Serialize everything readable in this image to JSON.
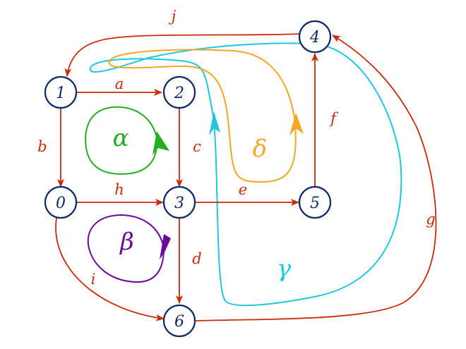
{
  "colors": {
    "edge": "#cc2a0a",
    "node": "#0d2a66",
    "alpha": "#22b022",
    "beta": "#6a0a9a",
    "gamma": "#1ec8e0",
    "delta": "#f5a623"
  },
  "nodes": [
    {
      "id": "n1",
      "label": "1"
    },
    {
      "id": "n2",
      "label": "2"
    },
    {
      "id": "n0",
      "label": "0"
    },
    {
      "id": "n3",
      "label": "3"
    },
    {
      "id": "n4",
      "label": "4"
    },
    {
      "id": "n5",
      "label": "5"
    },
    {
      "id": "n6",
      "label": "6"
    }
  ],
  "edges": [
    {
      "id": "a",
      "label": "a",
      "from": "1",
      "to": "2"
    },
    {
      "id": "b",
      "label": "b",
      "from": "1",
      "to": "0"
    },
    {
      "id": "c",
      "label": "c",
      "from": "2",
      "to": "3"
    },
    {
      "id": "h",
      "label": "h",
      "from": "0",
      "to": "3"
    },
    {
      "id": "e",
      "label": "e",
      "from": "3",
      "to": "5"
    },
    {
      "id": "d",
      "label": "d",
      "from": "3",
      "to": "6"
    },
    {
      "id": "f",
      "label": "f",
      "from": "5",
      "to": "4"
    },
    {
      "id": "i",
      "label": "i",
      "from": "0",
      "to": "6"
    },
    {
      "id": "j",
      "label": "j",
      "from": "4",
      "to": "1"
    },
    {
      "id": "g",
      "label": "g",
      "from": "6",
      "to": "4"
    }
  ],
  "cycles": [
    {
      "id": "alpha",
      "label": "α"
    },
    {
      "id": "beta",
      "label": "β"
    },
    {
      "id": "gamma",
      "label": "γ"
    },
    {
      "id": "delta",
      "label": "δ"
    }
  ]
}
